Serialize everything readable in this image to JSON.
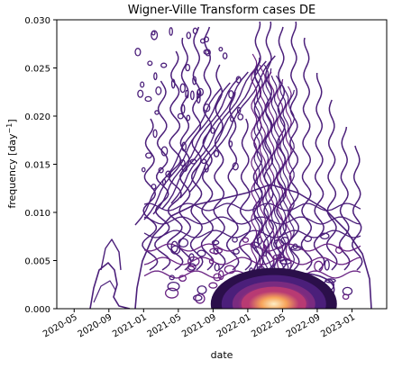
{
  "chart_data": {
    "type": "contour",
    "title": "Wigner-Ville Transform cases DE",
    "xlabel": "date",
    "ylabel": "frequency [day",
    "ylabel_sup": "−1",
    "ylabel_close": "]",
    "x_ticks": [
      "2020-05",
      "2020-09",
      "2021-01",
      "2021-05",
      "2021-09",
      "2022-01",
      "2022-05",
      "2022-09",
      "2023-01"
    ],
    "x_range": [
      "2020-03",
      "2023-05"
    ],
    "y_ticks": [
      "0.000",
      "0.005",
      "0.010",
      "0.015",
      "0.020",
      "0.025",
      "0.030"
    ],
    "ylim": [
      0,
      0.03
    ],
    "grid": false,
    "colormap": "magma",
    "peak": {
      "date": "2022-04",
      "frequency": 0.0005
    },
    "secondary_peak": {
      "date": "2022-07",
      "frequency": 0.002
    },
    "colors": {
      "low": "#4b1f7a",
      "mid": "#b83a73",
      "high": "#f6a45a",
      "peak": "#fdeec5"
    }
  }
}
